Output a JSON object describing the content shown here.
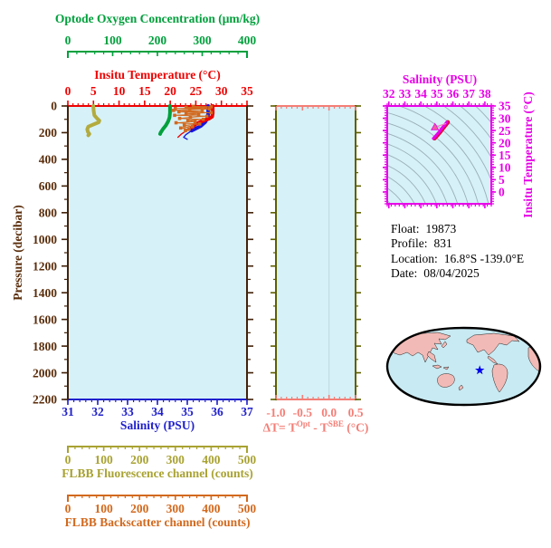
{
  "page": {
    "background": "#FFFFFF"
  },
  "info": {
    "lines": [
      {
        "label": "Float:",
        "value": "19873"
      },
      {
        "label": "Profile:",
        "value": "831"
      },
      {
        "label": "Location:",
        "value": "16.8°S  -139.0°E"
      },
      {
        "label": "Date:",
        "value": "08/04/2025"
      }
    ]
  },
  "colors": {
    "oxygen": "#00A03C",
    "temperature": "#EE0000",
    "salinity": "#2020CC",
    "salinity_line": "#1515DD",
    "fluorescence": "#A8A232",
    "fluorescence_line": "#B3AB3E",
    "backscatter": "#D2691E",
    "pressure": "#5A2D0B",
    "pressure_border": "#42220A",
    "delta_t": "#F47E76",
    "delta_t_side": "#5F5F00",
    "ts": "#E800E8",
    "ts_core": "#E00030",
    "ts_connector": "#F080C0",
    "ts_marker": "#F0609C",
    "contour": "#8FA3AD",
    "plot_bg": "#D6F1F8",
    "map_ocean": "#C8EAF2",
    "map_land": "#F2BAB6",
    "map_outline": "#000000",
    "star": "#0000EE",
    "info_text": "#000000"
  },
  "chart_data": [
    {
      "id": "profile-vs-pressure",
      "type": "line",
      "y_axis": {
        "label": "Pressure (decibar)",
        "min": 0,
        "max": 2200,
        "minor_step": 100,
        "ticks": [
          "0",
          "200",
          "400",
          "600",
          "800",
          "1000",
          "1200",
          "1400",
          "1600",
          "1800",
          "2000",
          "2200"
        ]
      },
      "x_axes": [
        {
          "id": "salinity",
          "label": "Salinity (PSU)",
          "min": 31,
          "max": 37,
          "minor_step": 0.2,
          "ticks": [
            "31",
            "32",
            "33",
            "34",
            "35",
            "36",
            "37"
          ],
          "color": "#2020CC",
          "position": "bottom-border"
        },
        {
          "id": "temperature",
          "label": "Insitu Temperature (°C)",
          "min": 0,
          "max": 35,
          "minor_step": 1,
          "ticks": [
            "0",
            "5",
            "10",
            "15",
            "20",
            "25",
            "30",
            "35"
          ],
          "color": "#EE0000",
          "position": "top-border"
        },
        {
          "id": "oxygen",
          "label": "Optode Oxygen Concentration (μm/kg)",
          "min": 0,
          "max": 400,
          "minor_step": 20,
          "ticks": [
            "0",
            "100",
            "200",
            "300",
            "400"
          ],
          "color": "#00A03C",
          "position": "floating-top"
        },
        {
          "id": "fluorescence",
          "label": "FLBB Fluorescence channel (counts)",
          "min": 0,
          "max": 500,
          "minor_step": 20,
          "ticks": [
            "0",
            "100",
            "200",
            "300",
            "400",
            "500"
          ],
          "color": "#A8A232",
          "position": "floating-bottom-1"
        },
        {
          "id": "backscatter",
          "label": "FLBB Backscatter channel (counts)",
          "min": 0,
          "max": 500,
          "minor_step": 20,
          "ticks": [
            "0",
            "100",
            "200",
            "300",
            "400",
            "500"
          ],
          "color": "#D2691E",
          "position": "floating-bottom-2"
        }
      ],
      "series": [
        {
          "name": "Salinity",
          "x_axis": "salinity",
          "color": "#1515DD",
          "segments": [
            {
              "width": 4,
              "points": [
                [
                  35.7,
                  0
                ],
                [
                  35.7,
                  60
                ],
                [
                  35.68,
                  90
                ],
                [
                  35.6,
                  120
                ],
                [
                  35.45,
                  150
                ],
                [
                  35.15,
                  185
                ]
              ]
            },
            {
              "width": 1.3,
              "points": [
                [
                  35.15,
                  185
                ],
                [
                  34.95,
                  215
                ],
                [
                  34.88,
                  235
                ],
                [
                  35.0,
                  250
                ]
              ]
            }
          ]
        },
        {
          "name": "Insitu Temperature",
          "x_axis": "temperature",
          "color": "#F00000",
          "segments": [
            {
              "width": 4,
              "points": [
                [
                  28.3,
                  0
                ],
                [
                  28.3,
                  55
                ],
                [
                  28.2,
                  80
                ],
                [
                  27.6,
                  95
                ],
                [
                  26.5,
                  110
                ],
                [
                  25.0,
                  135
                ],
                [
                  24.2,
                  160
                ]
              ]
            },
            {
              "width": 1.3,
              "points": [
                [
                  24.2,
                  160
                ],
                [
                  23.2,
                  185
                ],
                [
                  22.2,
                  210
                ],
                [
                  21.5,
                  235
                ]
              ]
            }
          ]
        },
        {
          "name": "Optode Oxygen",
          "x_axis": "oxygen",
          "color": "#00A03C",
          "segments": [
            {
              "width": 4,
              "points": [
                [
                  228,
                  0
                ],
                [
                  228,
                  50
                ],
                [
                  227,
                  85
                ],
                [
                  224,
                  115
                ],
                [
                  219,
                  145
                ],
                [
                  212,
                  175
                ],
                [
                  207,
                  200
                ],
                [
                  206,
                  210
                ]
              ]
            }
          ]
        },
        {
          "name": "FLBB Fluorescence",
          "x_axis": "fluorescence",
          "color": "#B3AB3E",
          "segments": [
            {
              "width": 4,
              "points": [
                [
                  71,
                  0
                ],
                [
                  72,
                  35
                ],
                [
                  74,
                  70
                ],
                [
                  82,
                  95
                ],
                [
                  88,
                  110
                ],
                [
                  86,
                  122
                ],
                [
                  70,
                  140
                ],
                [
                  57,
                  155
                ],
                [
                  54,
                  175
                ],
                [
                  56,
                  195
                ],
                [
                  60,
                  210
                ],
                [
                  57,
                  220
                ]
              ]
            }
          ]
        },
        {
          "name": "FLBB Backscatter",
          "x_axis": "backscatter",
          "color": "#D2691E",
          "marker": "square",
          "marker_size": 3.6,
          "line_width": 1,
          "points": [
            [
              350,
              3
            ],
            [
              400,
              6
            ],
            [
              330,
              10
            ],
            [
              385,
              14
            ],
            [
              300,
              18
            ],
            [
              395,
              22
            ],
            [
              340,
              27
            ],
            [
              295,
              33
            ],
            [
              375,
              38
            ],
            [
              310,
              44
            ],
            [
              400,
              50
            ],
            [
              330,
              56
            ],
            [
              365,
              63
            ],
            [
              298,
              70
            ],
            [
              388,
              77
            ],
            [
              342,
              85
            ],
            [
              312,
              93
            ],
            [
              378,
              100
            ],
            [
              335,
              108
            ],
            [
              355,
              117
            ],
            [
              302,
              126
            ],
            [
              368,
              135
            ],
            [
              325,
              145
            ],
            [
              348,
              155
            ],
            [
              315,
              165
            ],
            [
              338,
              175
            ],
            [
              328,
              185
            ]
          ]
        }
      ]
    },
    {
      "id": "delta-t",
      "type": "line",
      "x_axis": {
        "label_parts": {
          "pre": "ΔT= T",
          "sup1": "Opt",
          "mid": " - T",
          "sup2": "SBE",
          "post": " (°C)"
        },
        "min": -1.0,
        "max": 0.5,
        "minor_step": 0.1,
        "ticks": [
          "-1.0",
          "-0.5",
          "0.0",
          "0.5"
        ],
        "color": "#F47E76"
      },
      "y_axis": {
        "min": 0,
        "max": 2200,
        "minor_step": 100,
        "color": "#5F5F00"
      },
      "zero_line": 0.0,
      "series": []
    },
    {
      "id": "ts-diagram",
      "type": "scatter",
      "x_axis": {
        "label": "Salinity (PSU)",
        "min": 31.9,
        "max": 38.4,
        "minor_step": 0.25,
        "ticks": [
          "32",
          "33",
          "34",
          "35",
          "36",
          "37",
          "38"
        ],
        "color": "#E800E8"
      },
      "y_axis": {
        "label": "Insitu Temperature (°C)",
        "min": -4.8,
        "max": 35,
        "minor_step": 1,
        "ticks": [
          "0",
          "5",
          "10",
          "15",
          "20",
          "25",
          "30",
          "35"
        ],
        "color": "#E800E8"
      },
      "isopycnal_contours": true,
      "series": [
        {
          "name": "T-S profile",
          "width": 5,
          "color": "#E800E8",
          "core_color": "#E00030",
          "points": [
            [
              34.78,
              21.8
            ],
            [
              34.95,
              23.0
            ],
            [
              35.15,
              24.5
            ],
            [
              35.35,
              26.2
            ],
            [
              35.55,
              27.8
            ],
            [
              35.62,
              28.4
            ]
          ]
        },
        {
          "name": "connector",
          "width": 1.2,
          "color": "#F080C0",
          "points": [
            [
              34.9,
              26.4
            ],
            [
              35.55,
              27.8
            ]
          ]
        },
        {
          "name": "surface-marker",
          "marker": "triangle",
          "color": "#F0609C",
          "points": [
            [
              34.88,
              26.4
            ]
          ]
        }
      ]
    },
    {
      "id": "location-map",
      "type": "map",
      "ocean_color": "#C8EAF2",
      "land_color": "#F2BAB6",
      "outline_color": "#000000",
      "star": {
        "color": "#0000EE",
        "x_frac": 0.605,
        "y_frac": 0.55
      }
    }
  ]
}
